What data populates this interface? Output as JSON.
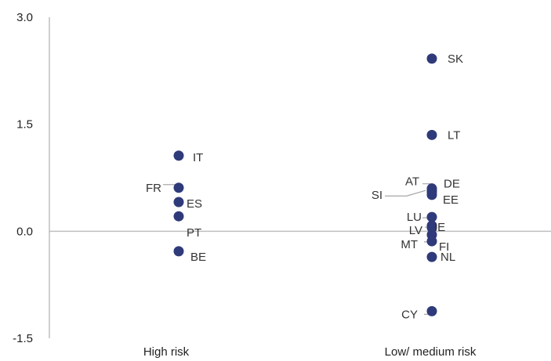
{
  "chart_data": {
    "type": "scatter",
    "title": "",
    "xlabel": "",
    "ylabel": "",
    "ylim": [
      -1.5,
      3.0
    ],
    "yticks": [
      "3.0",
      "1.5",
      "0.0",
      "-1.5"
    ],
    "categories": [
      "High risk",
      "Low/ medium risk"
    ],
    "marker_color": "#2f3a7a",
    "axis_color": "#bfbfbf",
    "points": [
      {
        "label": "IT",
        "category": "High risk",
        "y": 1.06
      },
      {
        "label": "FR",
        "category": "High risk",
        "y": 0.61
      },
      {
        "label": "ES",
        "category": "High risk",
        "y": 0.41
      },
      {
        "label": "PT",
        "category": "High risk",
        "y": 0.21
      },
      {
        "label": "BE",
        "category": "High risk",
        "y": -0.28
      },
      {
        "label": "SK",
        "category": "Low/ medium risk",
        "y": 2.42
      },
      {
        "label": "LT",
        "category": "Low/ medium risk",
        "y": 1.35
      },
      {
        "label": "AT",
        "category": "Low/ medium risk",
        "y": 0.6
      },
      {
        "label": "DE",
        "category": "Low/ medium risk",
        "y": 0.57
      },
      {
        "label": "SI",
        "category": "Low/ medium risk",
        "y": 0.55
      },
      {
        "label": "EE",
        "category": "Low/ medium risk",
        "y": 0.51
      },
      {
        "label": "LU",
        "category": "Low/ medium risk",
        "y": 0.2
      },
      {
        "label": "LV",
        "category": "Low/ medium risk",
        "y": 0.08
      },
      {
        "label": "IE",
        "category": "Low/ medium risk",
        "y": 0.05
      },
      {
        "label": "MT",
        "category": "Low/ medium risk",
        "y": -0.05
      },
      {
        "label": "FI",
        "category": "Low/ medium risk",
        "y": -0.14
      },
      {
        "label": "NL",
        "category": "Low/ medium risk",
        "y": -0.36
      },
      {
        "label": "CY",
        "category": "Low/ medium risk",
        "y": -1.12
      }
    ]
  }
}
